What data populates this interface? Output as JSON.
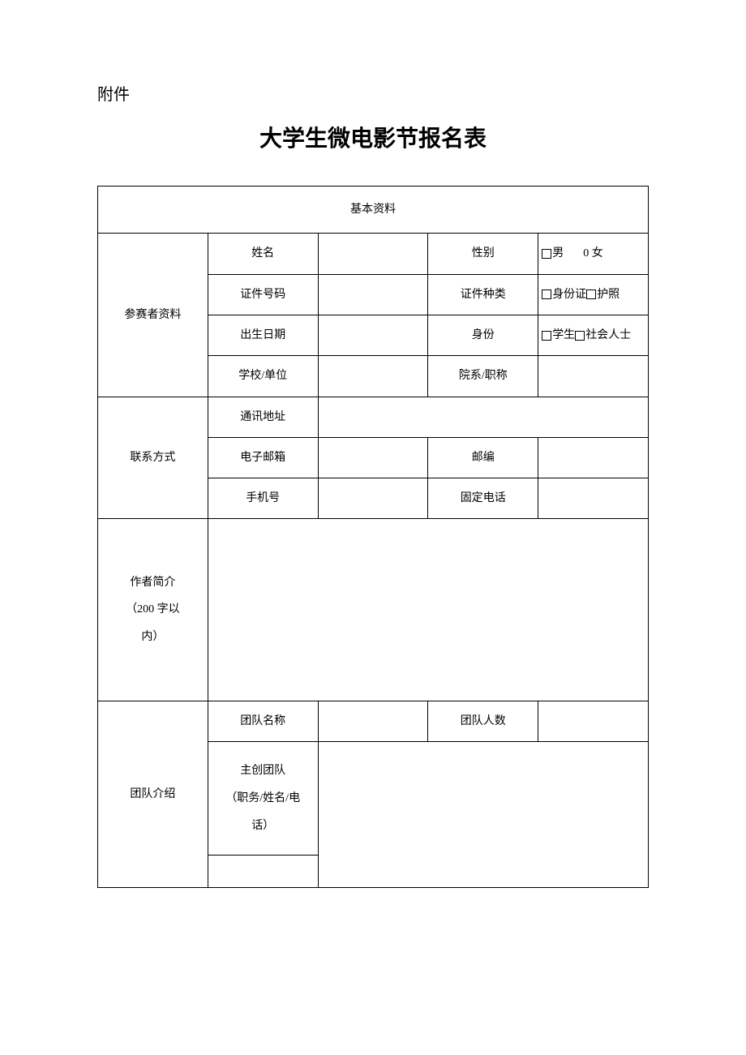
{
  "doc": {
    "attachment_label": "附件",
    "title": "大学生微电影节报名表",
    "section_header": "基本资料",
    "participant": {
      "section_label": "参赛者资料",
      "name_label": "姓名",
      "gender_label": "性别",
      "gender_male": "男",
      "gender_female": "0 女",
      "id_number_label": "证件号码",
      "id_type_label": "证件种类",
      "id_card": "身份证",
      "passport": "护照",
      "dob_label": "出生日期",
      "identity_label": "身份",
      "student": "学生",
      "social": "社会人士",
      "school_label": "学校/单位",
      "dept_label": "院系/职称"
    },
    "contact": {
      "section_label": "联系方式",
      "address_label": "通讯地址",
      "email_label": "电子邮箱",
      "postcode_label": "邮编",
      "mobile_label": "手机号",
      "phone_label": "固定电话"
    },
    "author": {
      "bio_label_l1": "作者简介",
      "bio_label_l2": "（200 字以",
      "bio_label_l3": "内）"
    },
    "team": {
      "section_label": "团队介绍",
      "name_label": "团队名称",
      "count_label": "团队人数",
      "detail_l1": "主创团队",
      "detail_l2": "（职务/姓名/电",
      "detail_l3": "话）"
    }
  },
  "style": {
    "background_color": "#ffffff",
    "border_color": "#000000",
    "text_color": "#000000",
    "title_fontsize": 28,
    "body_fontsize": 14,
    "attachment_fontsize": 20
  }
}
